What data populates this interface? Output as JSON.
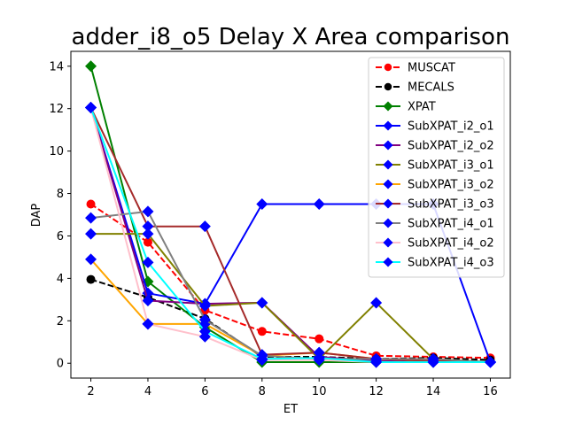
{
  "chart_data": {
    "type": "line",
    "title": "adder_i8_o5 Delay X Area comparison",
    "xlabel": "ET",
    "ylabel": "DAP",
    "xlim": [
      1.3,
      16.7
    ],
    "ylim": [
      -0.7,
      14.7
    ],
    "xticks": [
      2,
      4,
      6,
      8,
      10,
      12,
      14,
      16
    ],
    "yticks": [
      0,
      2,
      4,
      6,
      8,
      10,
      12,
      14
    ],
    "legend_position": "top-right",
    "series": [
      {
        "name": "MUSCAT",
        "color": "#ff0000",
        "line_color": "#ff0000",
        "marker": "circle",
        "dashed": true,
        "x": [
          2,
          4,
          6,
          8,
          10,
          12,
          14,
          16
        ],
        "y": [
          7.5,
          5.7,
          2.5,
          1.5,
          1.15,
          0.35,
          0.3,
          0.25
        ]
      },
      {
        "name": "MECALS",
        "color": "#000000",
        "line_color": "#000000",
        "marker": "circle",
        "dashed": true,
        "x": [
          2,
          4,
          6,
          8,
          10,
          12,
          14,
          16
        ],
        "y": [
          3.95,
          3.1,
          2.1,
          0.3,
          0.3,
          0.2,
          0.25,
          0.15
        ]
      },
      {
        "name": "XPAT",
        "color": "#008000",
        "line_color": "#008000",
        "marker": "diamond",
        "dashed": false,
        "x": [
          2,
          4,
          6,
          8,
          10,
          12,
          14,
          16
        ],
        "y": [
          14.0,
          3.85,
          1.7,
          0.05,
          0.05,
          0.05,
          0.05,
          0.05
        ]
      },
      {
        "name": "SubXPAT_i2_o1",
        "color": "#0000ff",
        "line_color": "#0000ff",
        "marker": "diamond",
        "dashed": false,
        "x": [
          2,
          4,
          6,
          8,
          10,
          12,
          14,
          16
        ],
        "y": [
          12.05,
          3.3,
          2.8,
          7.5,
          7.5,
          7.5,
          7.5,
          0.05
        ]
      },
      {
        "name": "SubXPAT_i2_o2",
        "color": "#0000ff",
        "line_color": "#800080",
        "marker": "diamond",
        "dashed": false,
        "x": [
          2,
          4,
          6,
          8,
          10,
          12,
          14,
          16
        ],
        "y": [
          12.05,
          2.95,
          2.8,
          2.85,
          0.3,
          0.1,
          0.1,
          0.05
        ]
      },
      {
        "name": "SubXPAT_i3_o1",
        "color": "#0000ff",
        "line_color": "#808000",
        "marker": "diamond",
        "dashed": false,
        "x": [
          2,
          4,
          6,
          8,
          10,
          12,
          14,
          16
        ],
        "y": [
          6.1,
          6.1,
          2.7,
          2.85,
          0.2,
          2.85,
          0.2,
          0.05
        ]
      },
      {
        "name": "SubXPAT_i3_o2",
        "color": "#0000ff",
        "line_color": "#ffa500",
        "marker": "diamond",
        "dashed": false,
        "x": [
          2,
          4,
          6,
          8,
          10,
          12,
          14,
          16
        ],
        "y": [
          4.9,
          1.85,
          1.85,
          0.35,
          0.5,
          0.2,
          0.1,
          0.05
        ]
      },
      {
        "name": "SubXPAT_i3_o3",
        "color": "#0000ff",
        "line_color": "#a52a2a",
        "marker": "diamond",
        "dashed": false,
        "x": [
          2,
          4,
          6,
          8,
          10,
          12,
          14,
          16
        ],
        "y": [
          12.05,
          6.45,
          6.45,
          0.4,
          0.5,
          0.2,
          0.1,
          0.05
        ]
      },
      {
        "name": "SubXPAT_i4_o1",
        "color": "#0000ff",
        "line_color": "#808080",
        "marker": "diamond",
        "dashed": false,
        "x": [
          2,
          4,
          6,
          8,
          10,
          12,
          14,
          16
        ],
        "y": [
          6.85,
          7.15,
          2.05,
          0.35,
          0.2,
          0.2,
          0.2,
          0.05
        ]
      },
      {
        "name": "SubXPAT_i4_o2",
        "color": "#0000ff",
        "line_color": "#ffc0cb",
        "marker": "diamond",
        "dashed": false,
        "x": [
          2,
          4,
          6,
          8,
          10,
          12,
          14,
          16
        ],
        "y": [
          12.05,
          1.85,
          1.25,
          0.15,
          0.15,
          0.05,
          0.05,
          0.05
        ]
      },
      {
        "name": "SubXPAT_i4_o3",
        "color": "#0000ff",
        "line_color": "#00ffff",
        "marker": "diamond",
        "dashed": false,
        "x": [
          2,
          4,
          6,
          8,
          10,
          12,
          14,
          16
        ],
        "y": [
          12.05,
          4.75,
          1.5,
          0.2,
          0.25,
          0.05,
          0.05,
          0.05
        ]
      }
    ]
  }
}
